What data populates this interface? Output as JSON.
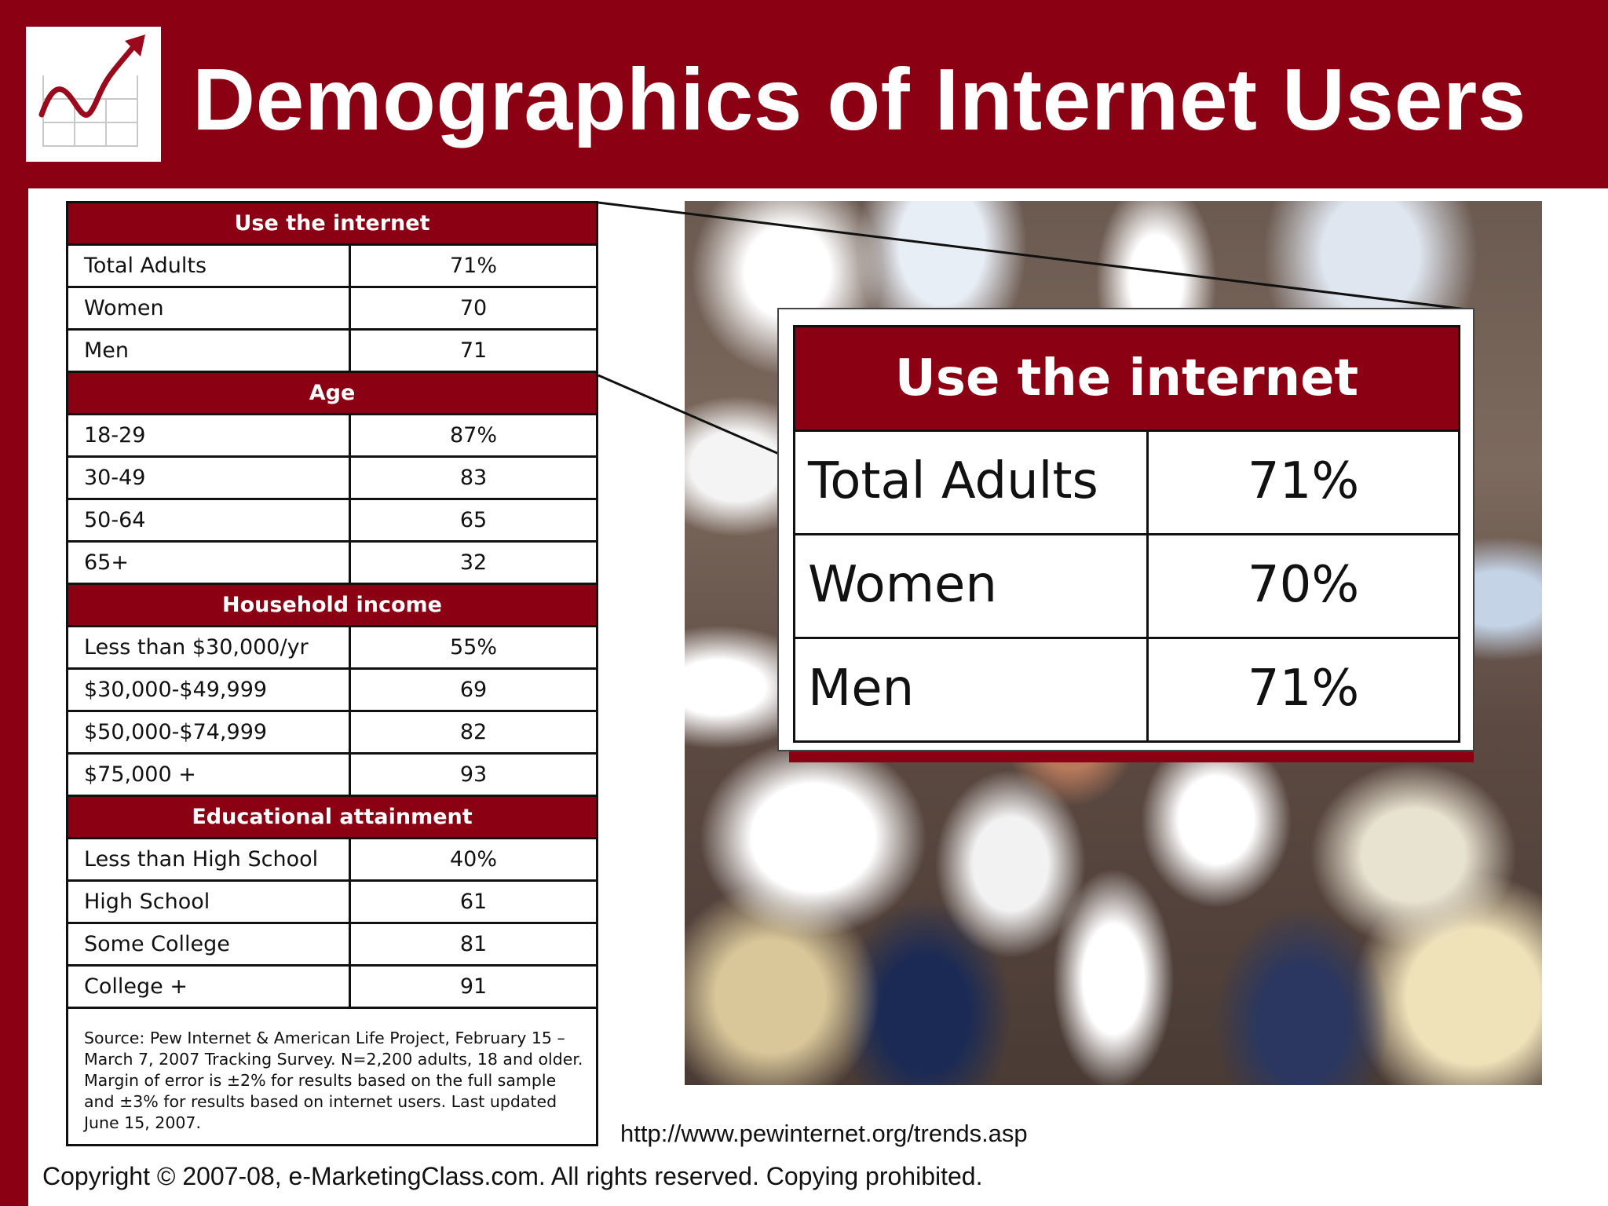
{
  "header": {
    "title": "Demographics of Internet Users",
    "logo_icon": "rising-trend-chart-icon"
  },
  "table": {
    "sections": [
      {
        "heading": "Use the internet",
        "rows": [
          {
            "label": "Total Adults",
            "value": "71%"
          },
          {
            "label": "Women",
            "value": "70"
          },
          {
            "label": "Men",
            "value": "71"
          }
        ]
      },
      {
        "heading": "Age",
        "rows": [
          {
            "label": "18-29",
            "value": "87%"
          },
          {
            "label": "30-49",
            "value": "83"
          },
          {
            "label": "50-64",
            "value": "65"
          },
          {
            "label": "65+",
            "value": "32"
          }
        ]
      },
      {
        "heading": "Household income",
        "rows": [
          {
            "label": "Less than $30,000/yr",
            "value": "55%"
          },
          {
            "label": "$30,000-$49,999",
            "value": "69"
          },
          {
            "label": "$50,000-$74,999",
            "value": "82"
          },
          {
            "label": "$75,000 +",
            "value": "93"
          }
        ]
      },
      {
        "heading": "Educational attainment",
        "rows": [
          {
            "label": "Less than High School",
            "value": "40%"
          },
          {
            "label": "High School",
            "value": "61"
          },
          {
            "label": "Some College",
            "value": "81"
          },
          {
            "label": "College +",
            "value": "91"
          }
        ]
      }
    ],
    "source": "Source:  Pew Internet & American Life Project, February 15 – March 7, 2007 Tracking Survey.  N=2,200 adults, 18 and older. Margin of error is ±2% for results based on the full sample and ±3% for results based on internet users. Last updated June 15, 2007."
  },
  "zoom": {
    "heading": "Use the internet",
    "rows": [
      {
        "label": "Total Adults",
        "value": "71%"
      },
      {
        "label": "Women",
        "value": "70%"
      },
      {
        "label": "Men",
        "value": "71%"
      }
    ]
  },
  "url": "http://www.pewinternet.org/trends.asp",
  "copyright": "Copyright © 2007-08, e-MarketingClass.com. All rights reserved. Copying prohibited.",
  "colors": {
    "brand_red": "#8b0012",
    "background_white": "#ffffff",
    "text_dark": "#111111"
  }
}
